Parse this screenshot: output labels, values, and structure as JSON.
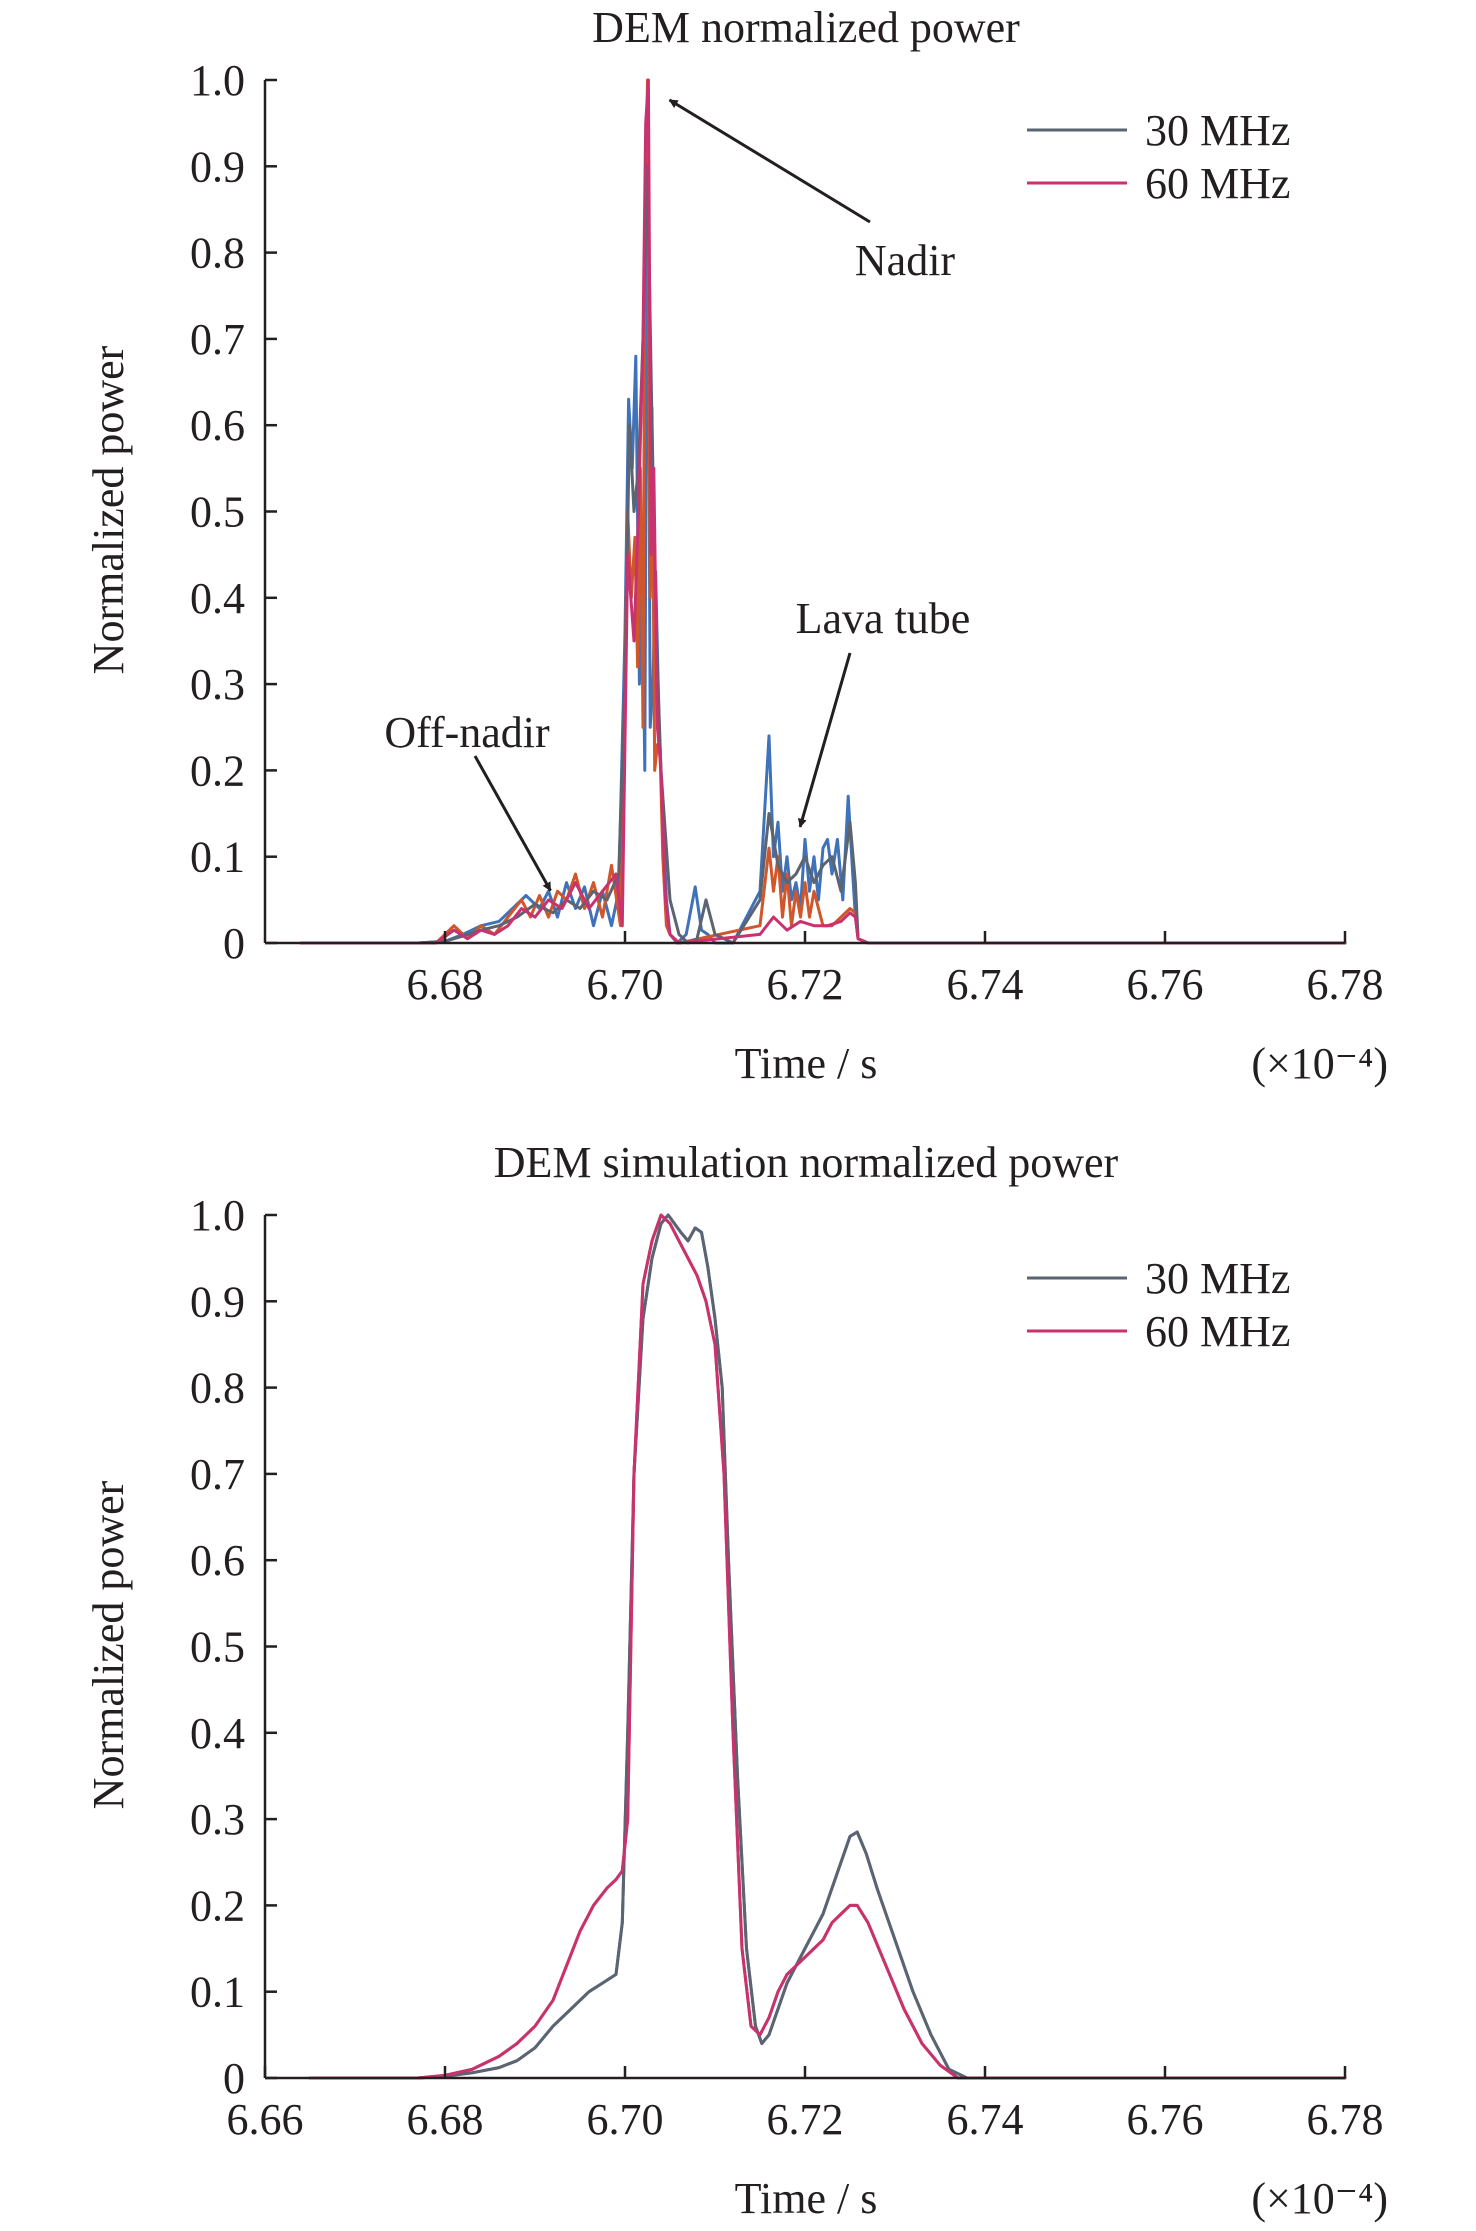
{
  "chart_data": [
    {
      "type": "line",
      "title": "DEM normalized power",
      "xlabel": "Time / s",
      "x_multiplier": "(×10⁻⁴)",
      "ylabel": "Normalized power",
      "xlim": [
        6.66,
        6.78
      ],
      "ylim": [
        0,
        1.0
      ],
      "x_ticks": [
        6.68,
        6.7,
        6.72,
        6.74,
        6.76,
        6.78
      ],
      "x_tick_labels": [
        "6.68",
        "6.70",
        "6.72",
        "6.74",
        "6.76",
        "6.78"
      ],
      "y_ticks": [
        0,
        0.1,
        0.2,
        0.3,
        0.4,
        0.5,
        0.6,
        0.7,
        0.8,
        0.9,
        1.0
      ],
      "y_tick_labels": [
        "0",
        "0.1",
        "0.2",
        "0.3",
        "0.4",
        "0.5",
        "0.6",
        "0.7",
        "0.8",
        "0.9",
        "1.0"
      ],
      "legend_position": "top-right",
      "legend": [
        {
          "label": "30 MHz",
          "color": "#5b6470"
        },
        {
          "label": "60 MHz",
          "color": "#c8326e"
        }
      ],
      "annotations": [
        {
          "text": "Nadir",
          "target": [
            6.7025,
            1.0
          ]
        },
        {
          "text": "Lava tube",
          "target": [
            6.7199,
            0.16
          ]
        },
        {
          "text": "Off-nadir",
          "target": [
            6.6915,
            0.07
          ]
        }
      ],
      "series": [
        {
          "name": "30 MHz",
          "color": "#3f72b8",
          "x": [
            6.664,
            6.677,
            6.68,
            6.682,
            6.684,
            6.686,
            6.6875,
            6.689,
            6.6905,
            6.6915,
            6.6925,
            6.6935,
            6.6945,
            6.6955,
            6.6965,
            6.6975,
            6.6985,
            6.6993,
            6.7,
            6.7004,
            6.7008,
            6.7012,
            6.7016,
            6.7019,
            6.7022,
            6.7025,
            6.7028,
            6.7031,
            6.7034,
            6.7038,
            6.7042,
            6.7046,
            6.705,
            6.7058,
            6.7068,
            6.7078,
            6.7085,
            6.7092,
            6.71,
            6.712,
            6.715,
            6.716,
            6.7165,
            6.717,
            6.7175,
            6.718,
            6.7185,
            6.719,
            6.7195,
            6.72,
            6.7205,
            6.721,
            6.7215,
            6.722,
            6.7225,
            6.723,
            6.7236,
            6.7242,
            6.7248,
            6.7253,
            6.7256,
            6.7259,
            6.727,
            6.73,
            6.78
          ],
          "y": [
            0,
            0,
            0.002,
            0.01,
            0.02,
            0.025,
            0.04,
            0.055,
            0.04,
            0.06,
            0.03,
            0.07,
            0.04,
            0.065,
            0.02,
            0.06,
            0.02,
            0.06,
            0.36,
            0.63,
            0.55,
            0.68,
            0.3,
            0.45,
            0.2,
            0.98,
            0.25,
            0.3,
            0.43,
            0.25,
            0.15,
            0.05,
            0.01,
            0,
            0.01,
            0.065,
            0.015,
            0.01,
            0,
            0,
            0.06,
            0.24,
            0.1,
            0.14,
            0.06,
            0.1,
            0.05,
            0.07,
            0.04,
            0.12,
            0.06,
            0.1,
            0.05,
            0.11,
            0.12,
            0.08,
            0.12,
            0.05,
            0.17,
            0.08,
            0.03,
            0.005,
            0,
            0,
            0
          ]
        },
        {
          "name": "60 MHz",
          "color": "#d0562b",
          "x": [
            6.664,
            6.679,
            6.681,
            6.6825,
            6.684,
            6.6855,
            6.687,
            6.6885,
            6.6895,
            6.6905,
            6.6915,
            6.6925,
            6.6935,
            6.6945,
            6.6955,
            6.6965,
            6.6975,
            6.6985,
            6.6995,
            6.7003,
            6.7007,
            6.7011,
            6.7014,
            6.7017,
            6.702,
            6.7022,
            6.7025,
            6.7028,
            6.703,
            6.7033,
            6.7036,
            6.7039,
            6.7042,
            6.7046,
            6.705,
            6.706,
            6.715,
            6.716,
            6.7165,
            6.717,
            6.7175,
            6.718,
            6.7185,
            6.719,
            6.7195,
            6.72,
            6.7205,
            6.721,
            6.722,
            6.723,
            6.724,
            6.725,
            6.7256,
            6.7259,
            6.727,
            6.78
          ],
          "y": [
            0,
            0,
            0.02,
            0.005,
            0.02,
            0.01,
            0.03,
            0.05,
            0.03,
            0.055,
            0.03,
            0.06,
            0.05,
            0.08,
            0.04,
            0.07,
            0.03,
            0.09,
            0.02,
            0.5,
            0.4,
            0.47,
            0.32,
            0.55,
            0.25,
            0.8,
            1.0,
            0.4,
            0.62,
            0.2,
            0.23,
            0.22,
            0.1,
            0.02,
            0.01,
            0,
            0.02,
            0.11,
            0.06,
            0.1,
            0.03,
            0.08,
            0.02,
            0.06,
            0.03,
            0.07,
            0.03,
            0.06,
            0.02,
            0.02,
            0.03,
            0.04,
            0.035,
            0.005,
            0,
            0
          ]
        },
        {
          "name": "30 MHz",
          "color": "#5b6470",
          "x": [
            6.664,
            6.677,
            6.68,
            6.682,
            6.684,
            6.686,
            6.688,
            6.69,
            6.692,
            6.6935,
            6.695,
            6.6965,
            6.698,
            6.6993,
            6.7,
            6.7005,
            6.701,
            6.7015,
            6.702,
            6.7025,
            6.703,
            6.7035,
            6.704,
            6.705,
            6.706,
            6.707,
            6.708,
            6.709,
            6.71,
            6.712,
            6.715,
            6.716,
            6.717,
            6.718,
            6.719,
            6.72,
            6.721,
            6.722,
            6.723,
            6.724,
            6.725,
            6.7256,
            6.7259,
            6.727,
            6.78
          ],
          "y": [
            0,
            0,
            0.002,
            0.008,
            0.015,
            0.02,
            0.03,
            0.045,
            0.035,
            0.05,
            0.04,
            0.06,
            0.05,
            0.08,
            0.3,
            0.6,
            0.5,
            0.55,
            0.7,
            0.9,
            0.6,
            0.35,
            0.2,
            0.05,
            0.01,
            0,
            0.005,
            0.05,
            0.01,
            0,
            0.05,
            0.15,
            0.09,
            0.07,
            0.08,
            0.1,
            0.07,
            0.09,
            0.1,
            0.06,
            0.14,
            0.07,
            0.005,
            0,
            0
          ]
        },
        {
          "name": "60 MHz",
          "color": "#c8326e",
          "x": [
            6.664,
            6.679,
            6.681,
            6.6825,
            6.684,
            6.6855,
            6.687,
            6.6885,
            6.69,
            6.6915,
            6.693,
            6.6945,
            6.696,
            6.6975,
            6.699,
            6.6997,
            6.7003,
            6.701,
            6.7015,
            6.702,
            6.7023,
            6.7026,
            6.7029,
            6.7032,
            6.7036,
            6.704,
            6.7045,
            6.705,
            6.706,
            6.715,
            6.7165,
            6.718,
            6.7195,
            6.721,
            6.7225,
            6.724,
            6.725,
            6.7256,
            6.7259,
            6.727,
            6.78
          ],
          "y": [
            0,
            0,
            0.015,
            0.005,
            0.015,
            0.01,
            0.02,
            0.04,
            0.03,
            0.05,
            0.04,
            0.07,
            0.04,
            0.06,
            0.08,
            0.02,
            0.45,
            0.35,
            0.5,
            0.7,
            0.95,
            1.0,
            0.45,
            0.55,
            0.25,
            0.2,
            0.05,
            0.01,
            0,
            0.01,
            0.03,
            0.015,
            0.025,
            0.02,
            0.02,
            0.025,
            0.035,
            0.03,
            0.005,
            0,
            0
          ]
        }
      ]
    },
    {
      "type": "line",
      "title": "DEM simulation normalized power",
      "xlabel": "Time / s",
      "x_multiplier": "(×10⁻⁴)",
      "ylabel": "Normalized power",
      "xlim": [
        6.66,
        6.78
      ],
      "ylim": [
        0,
        1.0
      ],
      "x_ticks": [
        6.66,
        6.68,
        6.7,
        6.72,
        6.74,
        6.76,
        6.78
      ],
      "x_tick_labels": [
        "6.66",
        "6.68",
        "6.70",
        "6.72",
        "6.74",
        "6.76",
        "6.78"
      ],
      "y_ticks": [
        0,
        0.1,
        0.2,
        0.3,
        0.4,
        0.5,
        0.6,
        0.7,
        0.8,
        0.9,
        1.0
      ],
      "y_tick_labels": [
        "0",
        "0.1",
        "0.2",
        "0.3",
        "0.4",
        "0.5",
        "0.6",
        "0.7",
        "0.8",
        "0.9",
        "1.0"
      ],
      "legend_position": "top-right",
      "legend": [
        {
          "label": "30 MHz",
          "color": "#5b6470"
        },
        {
          "label": "60 MHz",
          "color": "#c8326e"
        }
      ],
      "series": [
        {
          "name": "30 MHz",
          "color": "#3f72b8",
          "x": [
            6.665,
            6.677,
            6.68,
            6.683,
            6.686,
            6.688,
            6.69,
            6.692,
            6.694,
            6.696,
            6.6975,
            6.699,
            6.6997,
            6.7003,
            6.701,
            6.702,
            6.703,
            6.704,
            6.7048,
            6.7055,
            6.7062,
            6.707,
            6.7078,
            6.7085,
            6.7092,
            6.71,
            6.7108,
            6.7115,
            6.7125,
            6.7135,
            6.7145,
            6.7152,
            6.716,
            6.717,
            6.718,
            6.719,
            6.72,
            6.721,
            6.722,
            6.723,
            6.724,
            6.725,
            6.7258,
            6.7268,
            6.728,
            6.73,
            6.732,
            6.734,
            6.736,
            6.738,
            6.78
          ],
          "y": [
            0,
            0,
            0.002,
            0.006,
            0.012,
            0.02,
            0.035,
            0.06,
            0.08,
            0.1,
            0.11,
            0.12,
            0.18,
            0.4,
            0.7,
            0.88,
            0.95,
            0.99,
            1.0,
            0.99,
            0.98,
            0.97,
            0.985,
            0.98,
            0.94,
            0.88,
            0.8,
            0.6,
            0.35,
            0.15,
            0.06,
            0.04,
            0.05,
            0.08,
            0.11,
            0.13,
            0.15,
            0.17,
            0.19,
            0.22,
            0.25,
            0.28,
            0.285,
            0.26,
            0.22,
            0.16,
            0.1,
            0.05,
            0.01,
            0,
            0
          ]
        },
        {
          "name": "60 MHz",
          "color": "#d0562b",
          "x": [
            6.665,
            6.677,
            6.68,
            6.683,
            6.686,
            6.688,
            6.69,
            6.692,
            6.6935,
            6.695,
            6.6965,
            6.698,
            6.699,
            6.6997,
            6.7003,
            6.701,
            6.702,
            6.703,
            6.704,
            6.705,
            6.706,
            6.707,
            6.708,
            6.709,
            6.71,
            6.711,
            6.712,
            6.713,
            6.714,
            6.715,
            6.716,
            6.717,
            6.718,
            6.719,
            6.72,
            6.721,
            6.722,
            6.723,
            6.724,
            6.725,
            6.7258,
            6.727,
            6.729,
            6.731,
            6.733,
            6.735,
            6.737,
            6.78
          ],
          "y": [
            0,
            0,
            0.003,
            0.01,
            0.025,
            0.04,
            0.06,
            0.09,
            0.13,
            0.17,
            0.2,
            0.22,
            0.23,
            0.24,
            0.3,
            0.7,
            0.92,
            0.97,
            1.0,
            0.99,
            0.97,
            0.95,
            0.93,
            0.9,
            0.85,
            0.7,
            0.4,
            0.15,
            0.06,
            0.05,
            0.07,
            0.1,
            0.12,
            0.13,
            0.14,
            0.15,
            0.16,
            0.18,
            0.19,
            0.2,
            0.2,
            0.18,
            0.13,
            0.08,
            0.04,
            0.015,
            0,
            0
          ]
        },
        {
          "name": "30 MHz",
          "color": "#5b6470",
          "x": [
            6.665,
            6.677,
            6.68,
            6.683,
            6.686,
            6.688,
            6.69,
            6.692,
            6.694,
            6.696,
            6.6975,
            6.699,
            6.6997,
            6.7003,
            6.701,
            6.702,
            6.703,
            6.704,
            6.7048,
            6.7055,
            6.7062,
            6.707,
            6.7078,
            6.7085,
            6.7092,
            6.71,
            6.7108,
            6.7115,
            6.7125,
            6.7135,
            6.7145,
            6.7152,
            6.716,
            6.717,
            6.718,
            6.719,
            6.72,
            6.721,
            6.722,
            6.723,
            6.724,
            6.725,
            6.7258,
            6.7268,
            6.728,
            6.73,
            6.732,
            6.734,
            6.736,
            6.738,
            6.78
          ],
          "y": [
            0,
            0,
            0.002,
            0.006,
            0.012,
            0.02,
            0.035,
            0.06,
            0.08,
            0.1,
            0.11,
            0.12,
            0.18,
            0.4,
            0.7,
            0.88,
            0.95,
            0.99,
            1.0,
            0.99,
            0.98,
            0.97,
            0.985,
            0.98,
            0.94,
            0.88,
            0.8,
            0.6,
            0.35,
            0.15,
            0.06,
            0.04,
            0.05,
            0.08,
            0.11,
            0.13,
            0.15,
            0.17,
            0.19,
            0.22,
            0.25,
            0.28,
            0.285,
            0.26,
            0.22,
            0.16,
            0.1,
            0.05,
            0.01,
            0,
            0
          ]
        },
        {
          "name": "60 MHz",
          "color": "#c8326e",
          "x": [
            6.665,
            6.677,
            6.68,
            6.683,
            6.686,
            6.688,
            6.69,
            6.692,
            6.6935,
            6.695,
            6.6965,
            6.698,
            6.699,
            6.6997,
            6.7003,
            6.701,
            6.702,
            6.703,
            6.704,
            6.705,
            6.706,
            6.707,
            6.708,
            6.709,
            6.71,
            6.711,
            6.712,
            6.713,
            6.714,
            6.715,
            6.716,
            6.717,
            6.718,
            6.719,
            6.72,
            6.721,
            6.722,
            6.723,
            6.724,
            6.725,
            6.7258,
            6.727,
            6.729,
            6.731,
            6.733,
            6.735,
            6.737,
            6.78
          ],
          "y": [
            0,
            0,
            0.003,
            0.01,
            0.025,
            0.04,
            0.06,
            0.09,
            0.13,
            0.17,
            0.2,
            0.22,
            0.23,
            0.24,
            0.3,
            0.7,
            0.92,
            0.97,
            1.0,
            0.99,
            0.97,
            0.95,
            0.93,
            0.9,
            0.85,
            0.7,
            0.4,
            0.15,
            0.06,
            0.05,
            0.07,
            0.1,
            0.12,
            0.13,
            0.14,
            0.15,
            0.16,
            0.18,
            0.19,
            0.2,
            0.2,
            0.18,
            0.13,
            0.08,
            0.04,
            0.015,
            0,
            0
          ]
        }
      ]
    }
  ]
}
